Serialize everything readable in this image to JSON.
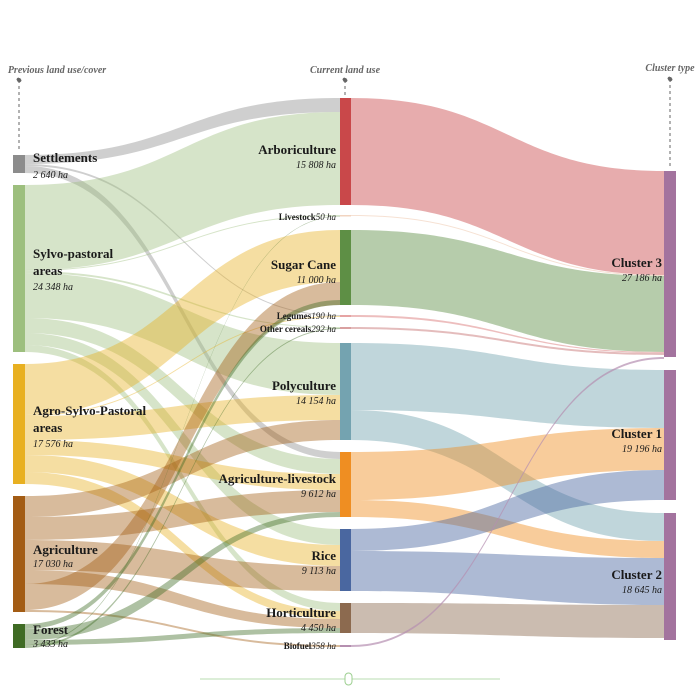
{
  "columns": {
    "previous": "Previous land use/cover",
    "current": "Current land use",
    "cluster": "Cluster type"
  },
  "colors": {
    "settlements": "#8c8c8c",
    "sylvo": "#9dbf7e",
    "agro": "#e8b021",
    "agriculture": "#a35c14",
    "forest": "#3f6b24",
    "arboriculture": "#c9484a",
    "livestock": "#f2d4c0",
    "sugarcane": "#5e8f45",
    "legumes": "#e6a3a3",
    "othercereals": "#d9a0a0",
    "polyculture": "#74a3b0",
    "agrilivestock": "#ef8e22",
    "rice": "#4a67a0",
    "horticulture": "#8c6a4f",
    "biofuel": "#b58fb0",
    "cluster": "#a3739e"
  },
  "nodes": {
    "left": [
      {
        "name": "Settlements",
        "value": "2 640 ha"
      },
      {
        "name": "Sylvo-pastoral areas",
        "line1": "Sylvo-pastoral",
        "line2": "areas",
        "value": "24 348 ha"
      },
      {
        "name": "Agro-Sylvo-Pastoral areas",
        "line1": "Agro-Sylvo-Pastoral",
        "line2": "areas",
        "value": "17 576 ha"
      },
      {
        "name": "Agriculture",
        "value": "17 030 ha"
      },
      {
        "name": "Forest",
        "value": "3 433 ha"
      }
    ],
    "middle": [
      {
        "name": "Arboriculture",
        "value": "15 808 ha"
      },
      {
        "name": "Livestock",
        "value": "50 ha"
      },
      {
        "name": "Sugar Cane",
        "value": "11 000 ha"
      },
      {
        "name": "Legumes",
        "value": "190 ha"
      },
      {
        "name": "Other cereals",
        "value": "292 ha"
      },
      {
        "name": "Polyculture",
        "value": "14 154 ha"
      },
      {
        "name": "Agriculture-livestock",
        "value": "9 612 ha"
      },
      {
        "name": "Rice",
        "value": "9 113 ha"
      },
      {
        "name": "Horticulture",
        "value": "4 450 ha"
      },
      {
        "name": "Biofuel",
        "value": "358 ha"
      }
    ],
    "right": [
      {
        "name": "Cluster 3",
        "value": "27 186 ha"
      },
      {
        "name": "Cluster 1",
        "value": "19 196 ha"
      },
      {
        "name": "Cluster 2",
        "value": "18 645 ha"
      }
    ]
  },
  "chart_data": {
    "type": "sankey",
    "units": "ha",
    "stages": [
      "Previous land use/cover",
      "Current land use",
      "Cluster type"
    ],
    "node_values": {
      "Settlements": 2640,
      "Sylvo-pastoral areas": 24348,
      "Agro-Sylvo-Pastoral areas": 17576,
      "Agriculture": 17030,
      "Forest": 3433,
      "Arboriculture": 15808,
      "Livestock": 50,
      "Sugar Cane": 11000,
      "Legumes": 190,
      "Other cereals": 292,
      "Polyculture": 14154,
      "Agriculture-livestock": 9612,
      "Rice": 9113,
      "Horticulture": 4450,
      "Biofuel": 358,
      "Cluster 3": 27186,
      "Cluster 1": 19196,
      "Cluster 2": 18645
    }
  }
}
